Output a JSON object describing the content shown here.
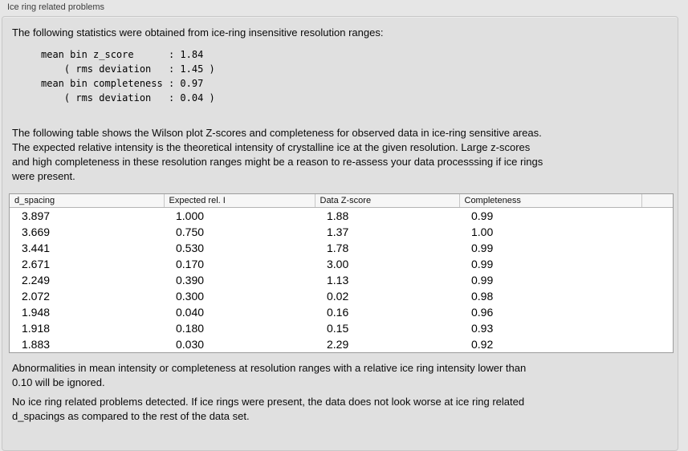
{
  "panel": {
    "title": "Ice ring related problems"
  },
  "intro": "The following statistics were obtained from ice-ring insensitive resolution ranges:",
  "stats_block": "mean bin z_score      : 1.84\n    ( rms deviation   : 1.45 )\nmean bin completeness : 0.97\n    ( rms deviation   : 0.04 )",
  "table_intro": "The following table shows the Wilson plot Z-scores and completeness for observed data in ice-ring sensitive areas.\nThe expected relative intensity is the theoretical intensity of crystalline ice at the given resolution. Large z-scores\nand high completeness in these resolution ranges might be a reason to re-assess your data processsing if ice rings\nwere present.",
  "table": {
    "headers": [
      "d_spacing",
      "Expected rel. I",
      "Data Z-score",
      "Completeness",
      ""
    ],
    "rows": [
      [
        "3.897",
        "1.000",
        "1.88",
        "0.99",
        ""
      ],
      [
        "3.669",
        "0.750",
        "1.37",
        "1.00",
        ""
      ],
      [
        "3.441",
        "0.530",
        "1.78",
        "0.99",
        ""
      ],
      [
        "2.671",
        "0.170",
        "3.00",
        "0.99",
        ""
      ],
      [
        "2.249",
        "0.390",
        "1.13",
        "0.99",
        ""
      ],
      [
        "2.072",
        "0.300",
        "0.02",
        "0.98",
        ""
      ],
      [
        "1.948",
        "0.040",
        "0.16",
        "0.96",
        ""
      ],
      [
        "1.918",
        "0.180",
        "0.15",
        "0.93",
        ""
      ],
      [
        "1.883",
        "0.030",
        "2.29",
        "0.92",
        ""
      ]
    ]
  },
  "note": "Abnormalities in mean intensity or completeness at resolution ranges with a relative ice ring intensity lower than\n0.10 will be ignored.",
  "conclusion": "No ice ring related problems detected. If ice rings were present, the data does not look worse at ice ring related\nd_spacings as compared to the rest of the data set."
}
